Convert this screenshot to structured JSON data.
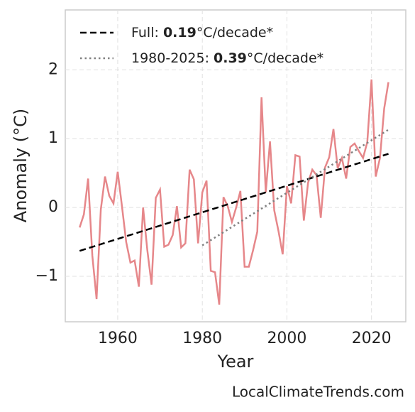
{
  "chart_data": {
    "type": "line",
    "xlabel": "Year",
    "ylabel": "Anomaly (°C)",
    "watermark": "LocalClimateTrends.com",
    "xlim": [
      1947.6,
      2028.1
    ],
    "ylim": [
      -1.66,
      2.87
    ],
    "xticks": [
      1960,
      1980,
      2000,
      2020
    ],
    "yticks": [
      {
        "value": -1,
        "label": "−1"
      },
      0,
      1,
      2
    ],
    "grid": true,
    "legend": "upper left",
    "x": [
      1951,
      1952,
      1953,
      1954,
      1955,
      1956,
      1957,
      1958,
      1959,
      1960,
      1961,
      1962,
      1963,
      1964,
      1965,
      1966,
      1967,
      1968,
      1969,
      1970,
      1971,
      1972,
      1973,
      1974,
      1975,
      1976,
      1977,
      1978,
      1979,
      1980,
      1981,
      1982,
      1983,
      1984,
      1985,
      1986,
      1987,
      1988,
      1989,
      1990,
      1991,
      1992,
      1993,
      1994,
      1995,
      1996,
      1997,
      1998,
      1999,
      2000,
      2001,
      2002,
      2003,
      2004,
      2005,
      2006,
      2007,
      2008,
      2009,
      2010,
      2011,
      2012,
      2013,
      2014,
      2015,
      2016,
      2017,
      2018,
      2019,
      2020,
      2021,
      2022,
      2023,
      2024
    ],
    "values": [
      -0.29,
      -0.1,
      0.42,
      -0.7,
      -1.33,
      -0.03,
      0.45,
      0.17,
      0.06,
      0.52,
      0.02,
      -0.5,
      -0.8,
      -0.77,
      -1.15,
      0.0,
      -0.62,
      -1.12,
      0.14,
      0.26,
      -0.57,
      -0.54,
      -0.4,
      0.02,
      -0.58,
      -0.52,
      0.55,
      0.41,
      -0.52,
      0.22,
      0.39,
      -0.92,
      -0.94,
      -1.41,
      0.15,
      0.02,
      -0.21,
      0.0,
      0.24,
      -0.86,
      -0.86,
      -0.62,
      -0.35,
      1.6,
      0.22,
      0.96,
      -0.04,
      -0.34,
      -0.68,
      0.31,
      0.06,
      0.76,
      0.74,
      -0.19,
      0.36,
      0.55,
      0.47,
      -0.15,
      0.58,
      0.73,
      1.14,
      0.57,
      0.72,
      0.42,
      0.88,
      0.93,
      0.82,
      0.72,
      0.95,
      1.86,
      0.45,
      0.72,
      1.44,
      1.82
    ],
    "color": "#e6878a",
    "series": [
      {
        "name": "Full: 0.19°C/decade*",
        "color": "#000000",
        "style": "dashed",
        "x": [
          1951,
          2024
        ],
        "values": [
          -0.63,
          0.78
        ]
      },
      {
        "name": "1980-2025: 0.39°C/decade*",
        "color": "#808080",
        "style": "dotted",
        "x": [
          1980,
          2024
        ],
        "values": [
          -0.55,
          1.13
        ]
      }
    ]
  }
}
